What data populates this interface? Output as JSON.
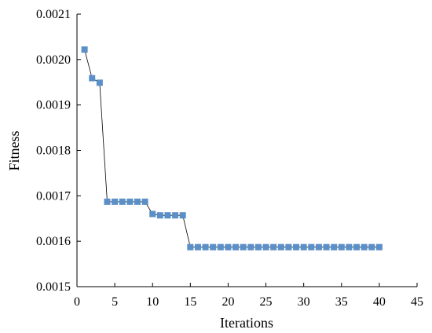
{
  "chart_data": {
    "type": "line",
    "title": "",
    "xlabel": "Iterations",
    "ylabel": "Fitness",
    "xlim": [
      0,
      45
    ],
    "ylim": [
      0.0015,
      0.0021
    ],
    "xticks": [
      0,
      5,
      10,
      15,
      20,
      25,
      30,
      35,
      40,
      45
    ],
    "xtick_labels": [
      "0",
      "5",
      "10",
      "15",
      "20",
      "25",
      "30",
      "35",
      "40",
      "45"
    ],
    "yticks": [
      0.0015,
      0.0016,
      0.0017,
      0.0018,
      0.0019,
      0.002,
      0.0021
    ],
    "ytick_labels": [
      "0.0015",
      "0.0016",
      "0.0017",
      "0.0018",
      "0.0019",
      "0.0020",
      "0.0021"
    ],
    "grid": false,
    "marker": "square",
    "marker_color": "#5b8fc7",
    "line_color": "#000000",
    "series": [
      {
        "x": [
          1,
          2,
          3,
          4,
          5,
          6,
          7,
          8,
          9,
          10,
          11,
          12,
          13,
          14,
          15,
          16,
          17,
          18,
          19,
          20,
          21,
          22,
          23,
          24,
          25,
          26,
          27,
          28,
          29,
          30,
          31,
          32,
          33,
          34,
          35,
          36,
          37,
          38,
          39,
          40
        ],
        "values": [
          0.002022,
          0.001959,
          0.001949,
          0.001687,
          0.001687,
          0.001687,
          0.001687,
          0.001687,
          0.001687,
          0.00166,
          0.001657,
          0.001657,
          0.001657,
          0.001657,
          0.001587,
          0.001587,
          0.001587,
          0.001587,
          0.001587,
          0.001587,
          0.001587,
          0.001587,
          0.001587,
          0.001587,
          0.001587,
          0.001587,
          0.001587,
          0.001587,
          0.001587,
          0.001587,
          0.001587,
          0.001587,
          0.001587,
          0.001587,
          0.001587,
          0.001587,
          0.001587,
          0.001587,
          0.001587,
          0.001587
        ]
      }
    ]
  }
}
